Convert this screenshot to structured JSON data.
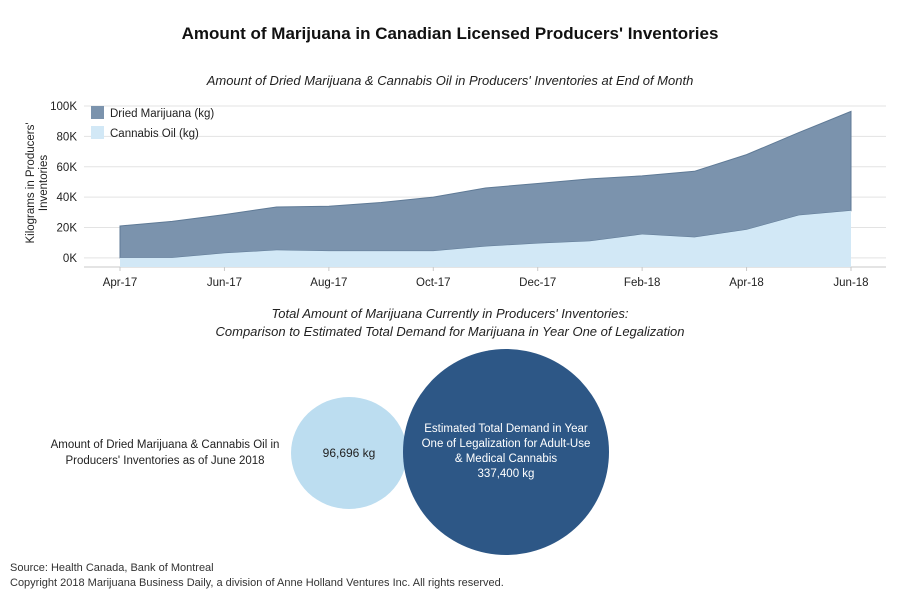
{
  "main_title": "Amount of Marijuana in Canadian Licensed Producers' Inventories",
  "chart1_title": "Amount of Dried Marijuana & Cannabis Oil in Producers' Inventories at End of Month",
  "chart2_title_line1": "Total Amount of Marijuana Currently in Producers' Inventories:",
  "chart2_title_line2": "Comparison to Estimated Total Demand for Marijuana in Year One of Legalization",
  "chart_data": [
    {
      "type": "area",
      "title": "Amount of Dried Marijuana & Cannabis Oil in Producers' Inventories at End of Month",
      "xlabel": "",
      "ylabel": "Kilograms in Producers' Inventories",
      "x": [
        "Apr-17",
        "May-17",
        "Jun-17",
        "Jul-17",
        "Aug-17",
        "Sep-17",
        "Oct-17",
        "Nov-17",
        "Dec-17",
        "Jan-18",
        "Feb-18",
        "Mar-18",
        "Apr-18",
        "May-18",
        "Jun-18"
      ],
      "x_tick_labels": [
        "Apr-17",
        "Jun-17",
        "Aug-17",
        "Oct-17",
        "Dec-17",
        "Feb-18",
        "Apr-18",
        "Jun-18"
      ],
      "y_tick_labels": [
        "0K",
        "20K",
        "40K",
        "60K",
        "80K",
        "100K"
      ],
      "ylim": [
        -6000,
        102000
      ],
      "stacked": true,
      "grid": true,
      "legend_position": "top-left",
      "series": [
        {
          "name": "Dried Marijuana (kg)",
          "color": "#7b93ad",
          "values": [
            21000,
            24000,
            25500,
            28500,
            29500,
            32000,
            35500,
            38500,
            39500,
            41000,
            38500,
            43500,
            49500,
            54500,
            65500
          ]
        },
        {
          "name": "Cannabis Oil (kg)",
          "color": "#d2e8f6",
          "values": [
            0,
            0,
            3000,
            5000,
            4500,
            4500,
            4500,
            7500,
            9500,
            11000,
            15500,
            13500,
            18500,
            28000,
            31000
          ]
        }
      ]
    },
    {
      "type": "bubble",
      "title": "Total Amount of Marijuana Currently in Producers' Inventories: Comparison to Estimated Total Demand for Marijuana in Year One of Legalization",
      "items": [
        {
          "label": "Amount of Dried Marijuana & Cannabis Oil in Producers' Inventories as of June 2018",
          "value": 96696,
          "value_text": "96,696 kg",
          "color": "#bcddf0"
        },
        {
          "label": "Estimated Total Demand in Year One of Legalization for Adult-Use & Medical Cannabis",
          "value": 337400,
          "value_text": "337,400 kg",
          "color": "#2d5786"
        }
      ]
    }
  ],
  "bubble_small_label": "Amount of Dried Marijuana & Cannabis Oil in Producers' Inventories as of June 2018",
  "bubble_small_value": "96,696 kg",
  "bubble_big_line1": "Estimated Total Demand in Year",
  "bubble_big_line2": "One of Legalization for Adult-Use",
  "bubble_big_line3": "& Medical Cannabis",
  "bubble_big_value": "337,400 kg",
  "source_line1": "Source: Health Canada, Bank of Montreal",
  "source_line2": "Copyright 2018 Marijuana Business Daily, a division of Anne Holland Ventures Inc. All rights reserved."
}
